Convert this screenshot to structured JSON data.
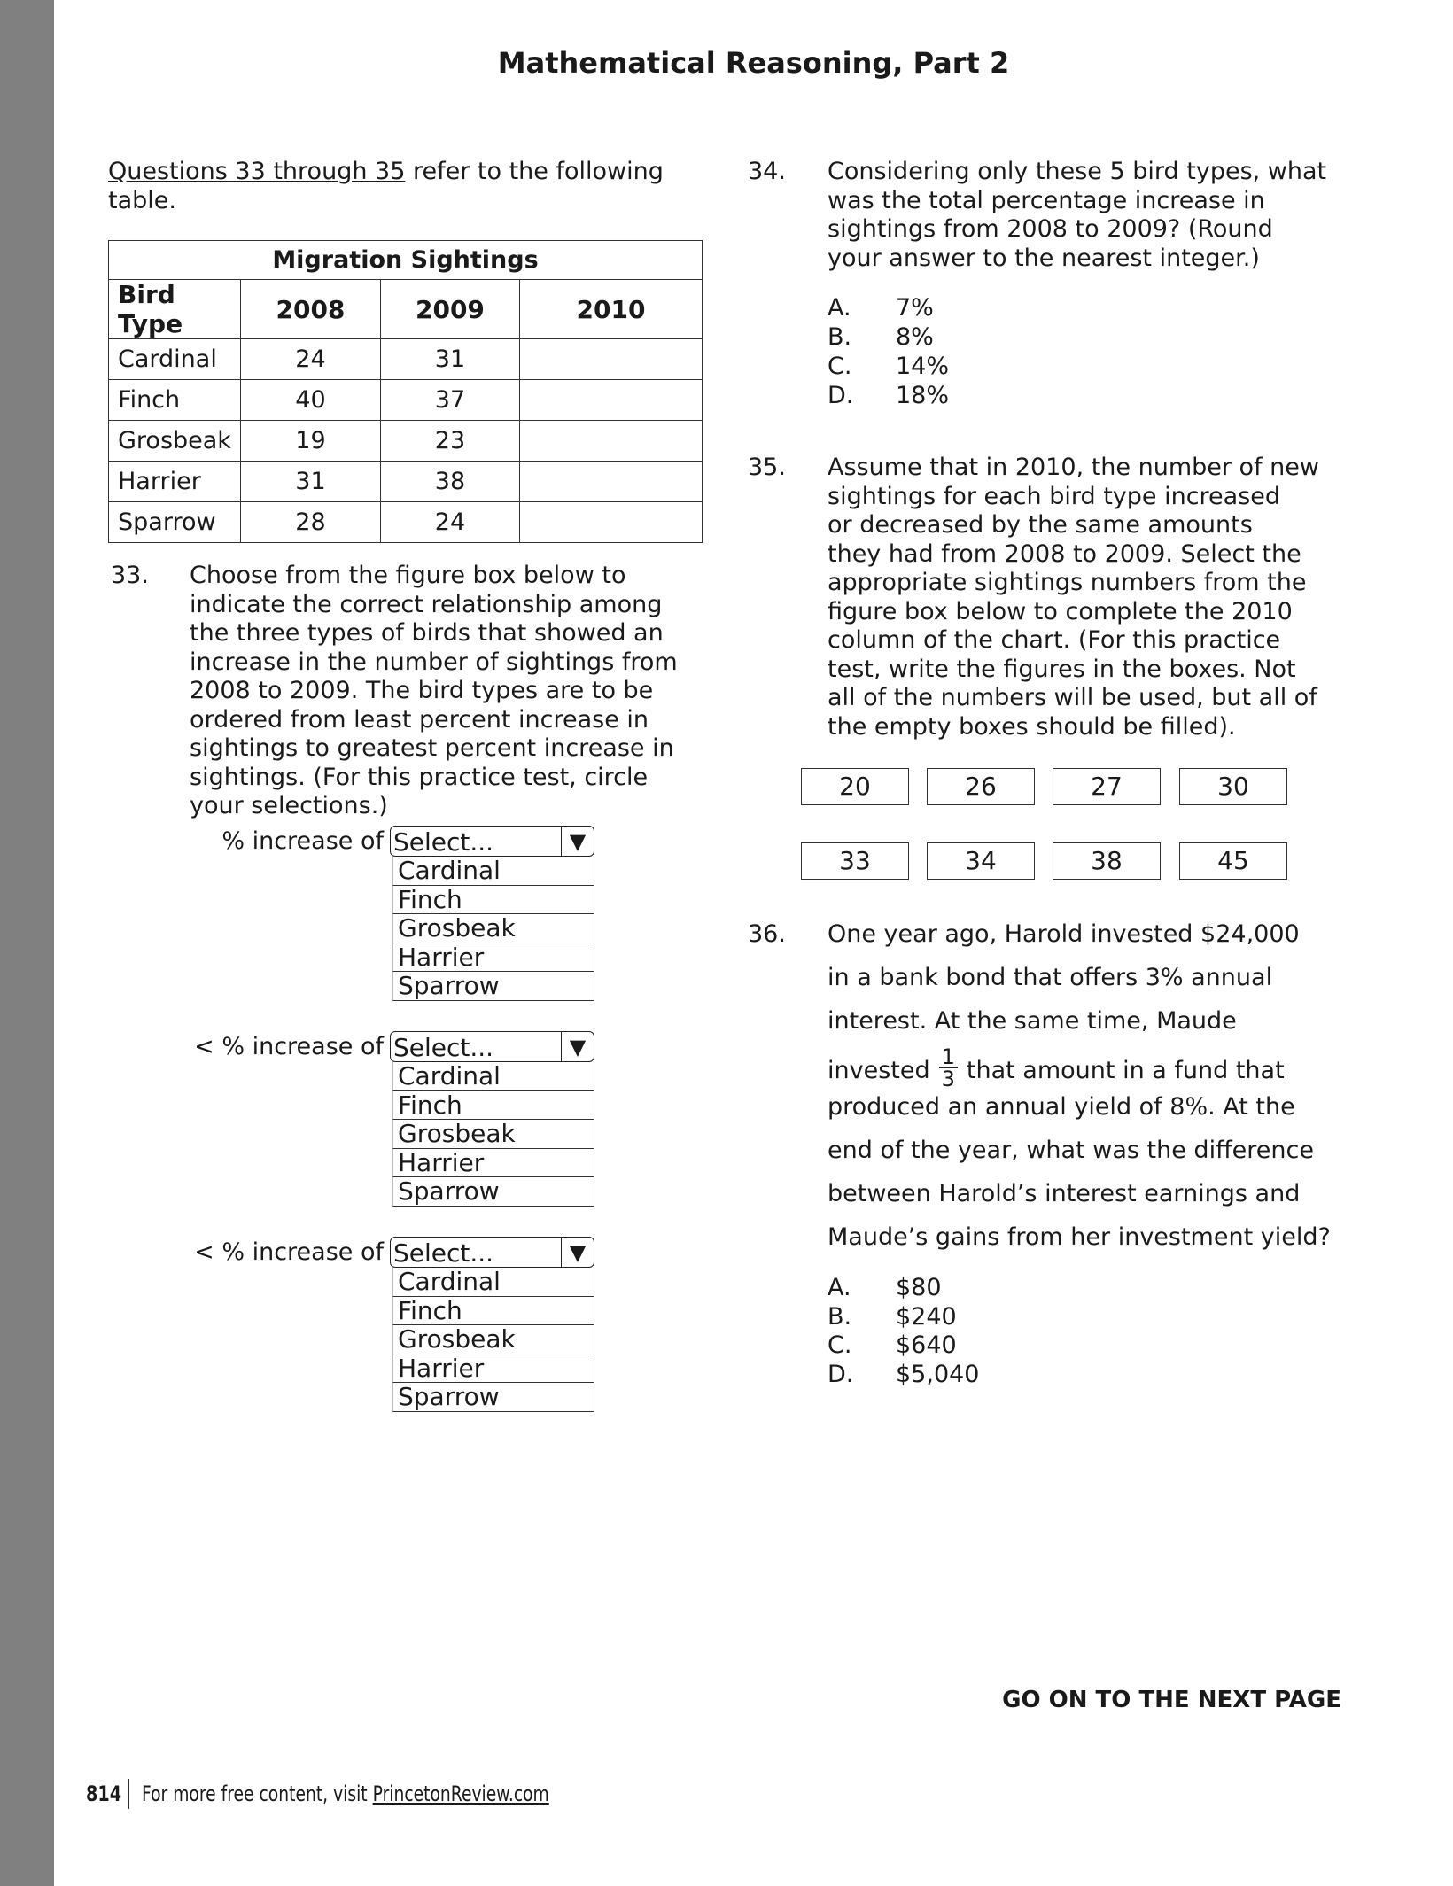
{
  "page_title": "Mathematical Reasoning, Part 2",
  "intro": {
    "link": "Questions 33 through 35",
    "rest": " refer to the following",
    "line2": "table."
  },
  "table": {
    "caption": "Migration Sightings",
    "headers": [
      "Bird Type",
      "2008",
      "2009",
      "2010"
    ],
    "rows": [
      [
        "Cardinal",
        "24",
        "31",
        ""
      ],
      [
        "Finch",
        "40",
        "37",
        ""
      ],
      [
        "Grosbeak",
        "19",
        "23",
        ""
      ],
      [
        "Harrier",
        "31",
        "38",
        ""
      ],
      [
        "Sparrow",
        "28",
        "24",
        ""
      ]
    ]
  },
  "q33": {
    "number": "33.",
    "lines": [
      "Choose from the figure box below to",
      "indicate the correct relationship among",
      "the three types of birds that showed an",
      "increase in the number of sightings from",
      "2008 to 2009. The bird types are to be",
      "ordered from least percent increase in",
      "sightings to greatest percent increase in",
      "sightings. (For this practice test, circle",
      "your selections.)"
    ],
    "dropdowns": [
      {
        "label": "% increase of",
        "value": "Select...",
        "options": [
          "Cardinal",
          "Finch",
          "Grosbeak",
          "Harrier",
          "Sparrow"
        ]
      },
      {
        "label": "< % increase of",
        "value": "Select...",
        "options": [
          "Cardinal",
          "Finch",
          "Grosbeak",
          "Harrier",
          "Sparrow"
        ]
      },
      {
        "label": "< % increase of",
        "value": "Select...",
        "options": [
          "Cardinal",
          "Finch",
          "Grosbeak",
          "Harrier",
          "Sparrow"
        ]
      }
    ],
    "arrow_icon": "triangle-down"
  },
  "q34": {
    "number": "34.",
    "lines": [
      "Considering only these 5 bird types, what",
      "was the total percentage increase in",
      "sightings from 2008 to 2009? (Round",
      "your answer to the nearest integer.)"
    ],
    "choices": [
      [
        "A.",
        "7%"
      ],
      [
        "B.",
        "8%"
      ],
      [
        "C.",
        "14%"
      ],
      [
        "D.",
        "18%"
      ]
    ]
  },
  "q35": {
    "number": "35.",
    "lines": [
      "Assume that in 2010, the number of new",
      "sightings for each bird type increased",
      "or decreased by the same amounts",
      "they had from 2008 to 2009. Select the",
      "appropriate sightings numbers from the",
      "figure box below to complete the 2010",
      "column of the chart. (For this practice",
      "test, write the figures in the boxes. Not",
      "all of the numbers will be used, but all of",
      "the empty boxes should be filled)."
    ],
    "figure_box": [
      "20",
      "26",
      "27",
      "30",
      "33",
      "34",
      "38",
      "45"
    ]
  },
  "q36": {
    "number": "36.",
    "lines": [
      "One year ago, Harold invested $24,000",
      "in a bank bond that offers 3% annual",
      "interest. At the same time, Maude"
    ],
    "line4_pre": "invested",
    "fraction": {
      "num": "1",
      "den": "3"
    },
    "line4_post": "that amount in a fund that",
    "lines_after": [
      "produced an annual yield of 8%. At the",
      "end of the year, what was the difference",
      "between Harold’s interest earnings and",
      "Maude’s gains from her investment yield?"
    ],
    "choices": [
      [
        "A.",
        "$80"
      ],
      [
        "B.",
        "$240"
      ],
      [
        "C.",
        "$640"
      ],
      [
        "D.",
        "$5,040"
      ]
    ]
  },
  "go_on": "GO ON TO THE NEXT PAGE",
  "footer": {
    "page_number": "814",
    "text": "For more free content, visit ",
    "link": "PrincetonReview.com"
  },
  "colors": {
    "sidebar": "#808080",
    "text": "#1a1a1a"
  }
}
